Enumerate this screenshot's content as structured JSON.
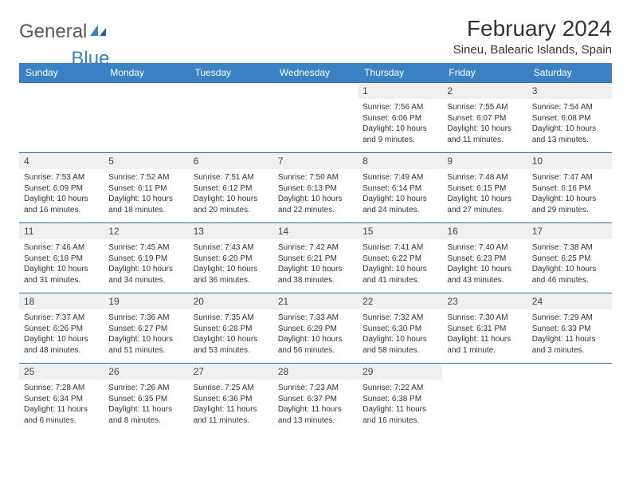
{
  "logo": {
    "text_general": "General",
    "text_blue": "Blue"
  },
  "header": {
    "month_title": "February 2024",
    "location": "Sineu, Balearic Islands, Spain"
  },
  "style": {
    "header_bg": "#3b82c4",
    "header_text": "#ffffff",
    "divider_color": "#3b6ea0",
    "daynum_bg": "#f0f0f0",
    "body_text": "#333333",
    "logo_gray": "#5a5a5a",
    "logo_blue": "#3b7fc4"
  },
  "weekdays": [
    "Sunday",
    "Monday",
    "Tuesday",
    "Wednesday",
    "Thursday",
    "Friday",
    "Saturday"
  ],
  "weeks": [
    [
      null,
      null,
      null,
      null,
      {
        "d": "1",
        "sr": "7:56 AM",
        "ss": "6:06 PM",
        "dl": "10 hours and 9 minutes."
      },
      {
        "d": "2",
        "sr": "7:55 AM",
        "ss": "6:07 PM",
        "dl": "10 hours and 11 minutes."
      },
      {
        "d": "3",
        "sr": "7:54 AM",
        "ss": "6:08 PM",
        "dl": "10 hours and 13 minutes."
      }
    ],
    [
      {
        "d": "4",
        "sr": "7:53 AM",
        "ss": "6:09 PM",
        "dl": "10 hours and 16 minutes."
      },
      {
        "d": "5",
        "sr": "7:52 AM",
        "ss": "6:11 PM",
        "dl": "10 hours and 18 minutes."
      },
      {
        "d": "6",
        "sr": "7:51 AM",
        "ss": "6:12 PM",
        "dl": "10 hours and 20 minutes."
      },
      {
        "d": "7",
        "sr": "7:50 AM",
        "ss": "6:13 PM",
        "dl": "10 hours and 22 minutes."
      },
      {
        "d": "8",
        "sr": "7:49 AM",
        "ss": "6:14 PM",
        "dl": "10 hours and 24 minutes."
      },
      {
        "d": "9",
        "sr": "7:48 AM",
        "ss": "6:15 PM",
        "dl": "10 hours and 27 minutes."
      },
      {
        "d": "10",
        "sr": "7:47 AM",
        "ss": "6:16 PM",
        "dl": "10 hours and 29 minutes."
      }
    ],
    [
      {
        "d": "11",
        "sr": "7:46 AM",
        "ss": "6:18 PM",
        "dl": "10 hours and 31 minutes."
      },
      {
        "d": "12",
        "sr": "7:45 AM",
        "ss": "6:19 PM",
        "dl": "10 hours and 34 minutes."
      },
      {
        "d": "13",
        "sr": "7:43 AM",
        "ss": "6:20 PM",
        "dl": "10 hours and 36 minutes."
      },
      {
        "d": "14",
        "sr": "7:42 AM",
        "ss": "6:21 PM",
        "dl": "10 hours and 38 minutes."
      },
      {
        "d": "15",
        "sr": "7:41 AM",
        "ss": "6:22 PM",
        "dl": "10 hours and 41 minutes."
      },
      {
        "d": "16",
        "sr": "7:40 AM",
        "ss": "6:23 PM",
        "dl": "10 hours and 43 minutes."
      },
      {
        "d": "17",
        "sr": "7:38 AM",
        "ss": "6:25 PM",
        "dl": "10 hours and 46 minutes."
      }
    ],
    [
      {
        "d": "18",
        "sr": "7:37 AM",
        "ss": "6:26 PM",
        "dl": "10 hours and 48 minutes."
      },
      {
        "d": "19",
        "sr": "7:36 AM",
        "ss": "6:27 PM",
        "dl": "10 hours and 51 minutes."
      },
      {
        "d": "20",
        "sr": "7:35 AM",
        "ss": "6:28 PM",
        "dl": "10 hours and 53 minutes."
      },
      {
        "d": "21",
        "sr": "7:33 AM",
        "ss": "6:29 PM",
        "dl": "10 hours and 56 minutes."
      },
      {
        "d": "22",
        "sr": "7:32 AM",
        "ss": "6:30 PM",
        "dl": "10 hours and 58 minutes."
      },
      {
        "d": "23",
        "sr": "7:30 AM",
        "ss": "6:31 PM",
        "dl": "11 hours and 1 minute."
      },
      {
        "d": "24",
        "sr": "7:29 AM",
        "ss": "6:33 PM",
        "dl": "11 hours and 3 minutes."
      }
    ],
    [
      {
        "d": "25",
        "sr": "7:28 AM",
        "ss": "6:34 PM",
        "dl": "11 hours and 6 minutes."
      },
      {
        "d": "26",
        "sr": "7:26 AM",
        "ss": "6:35 PM",
        "dl": "11 hours and 8 minutes."
      },
      {
        "d": "27",
        "sr": "7:25 AM",
        "ss": "6:36 PM",
        "dl": "11 hours and 11 minutes."
      },
      {
        "d": "28",
        "sr": "7:23 AM",
        "ss": "6:37 PM",
        "dl": "11 hours and 13 minutes."
      },
      {
        "d": "29",
        "sr": "7:22 AM",
        "ss": "6:38 PM",
        "dl": "11 hours and 16 minutes."
      },
      null,
      null
    ]
  ],
  "labels": {
    "sunrise": "Sunrise:",
    "sunset": "Sunset:",
    "daylight": "Daylight:"
  }
}
